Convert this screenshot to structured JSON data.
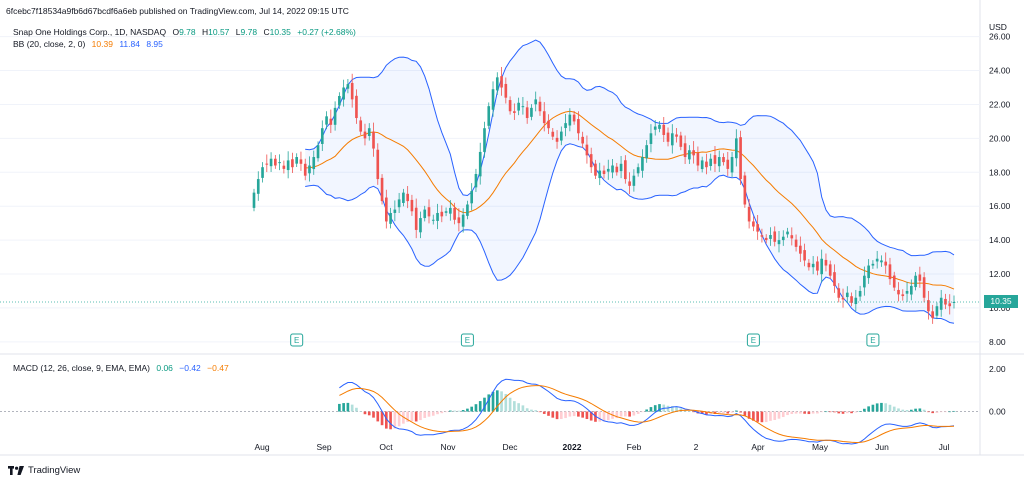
{
  "published": "6fcebc7f18534a9fb6d67bcdf6a6eb published on TradingView.com, Jul 14, 2022 09:15 UTC",
  "legend": {
    "symbol": "Snap One Holdings Corp., 1D, NASDAQ",
    "o_label": "O",
    "o_val": "9.78",
    "h_label": "H",
    "h_val": "10.57",
    "l_label": "L",
    "l_val": "9.78",
    "c_label": "C",
    "c_val": "10.35",
    "change": "+0.27 (+2.68%)",
    "bb_name": "BB (20, close, 2, 0)",
    "bb_basis": "10.39",
    "bb_upper": "11.84",
    "bb_lower": "8.95",
    "macd_name": "MACD (12, 26, close, 9, EMA, EMA)",
    "macd_hist": "0.06",
    "macd_line": "−0.42",
    "macd_signal": "−0.47"
  },
  "price_tag": "10.35",
  "branding": "TradingView",
  "colors": {
    "up": "#26a69a",
    "down": "#ef5350",
    "band": "#2962ff",
    "basis": "#f57c00",
    "macd_line": "#2962ff",
    "signal": "#f57c00",
    "hist_up_strong": "#26a69a",
    "hist_up_weak": "#b2dfdb",
    "hist_down_strong": "#ef5350",
    "hist_down_weak": "#ffcdd2"
  },
  "chart_data": {
    "type": "candlestick",
    "title": "Snap One Holdings Corp., 1D, NASDAQ",
    "currency": "USD",
    "price_ylim": [
      7.4,
      27.1
    ],
    "price_ticks": [
      "26.00",
      "24.00",
      "22.00",
      "20.00",
      "18.00",
      "16.00",
      "14.00",
      "12.00",
      "10.00",
      "8.00"
    ],
    "macd_ylim": [
      -1.8,
      2.6
    ],
    "macd_ticks": [
      "2.00",
      "0.00"
    ],
    "x_labels": [
      "Aug",
      "Sep",
      "Oct",
      "Nov",
      "Dec",
      "2022",
      "Feb",
      "2",
      "Apr",
      "May",
      "Jun",
      "Jul"
    ],
    "earnings_markers": [
      10,
      50,
      117,
      145
    ],
    "earnings_label": "E",
    "closes": [
      16.8,
      17.6,
      18.3,
      18.5,
      18.8,
      18.4,
      18.6,
      18.2,
      18.7,
      18.3,
      18.9,
      18.5,
      17.8,
      18.4,
      18.9,
      19.6,
      20.6,
      21.3,
      20.8,
      21.8,
      22.5,
      23.0,
      23.2,
      22.3,
      21.2,
      20.4,
      20.0,
      20.6,
      19.4,
      17.6,
      16.3,
      15.1,
      15.6,
      15.8,
      16.4,
      16.8,
      16.3,
      15.7,
      14.6,
      15.3,
      15.8,
      15.4,
      15.2,
      15.6,
      15.4,
      15.7,
      15.9,
      15.2,
      15.0,
      15.5,
      16.1,
      16.9,
      17.9,
      19.2,
      20.6,
      21.9,
      22.9,
      23.6,
      23.0,
      22.4,
      21.6,
      21.5,
      22.1,
      21.9,
      21.2,
      21.8,
      22.3,
      21.6,
      20.9,
      20.6,
      20.1,
      19.8,
      20.4,
      20.9,
      21.4,
      21.0,
      20.3,
      19.7,
      19.0,
      18.3,
      17.8,
      18.1,
      17.9,
      18.2,
      18.4,
      18.0,
      18.5,
      17.6,
      17.2,
      17.8,
      18.3,
      18.9,
      19.6,
      20.3,
      20.7,
      20.8,
      20.2,
      19.8,
      20.3,
      20.1,
      19.5,
      18.9,
      19.3,
      19.0,
      18.4,
      18.7,
      18.3,
      18.8,
      18.5,
      18.9,
      18.6,
      18.2,
      18.9,
      20.0,
      17.6,
      16.1,
      15.1,
      14.8,
      14.5,
      14.2,
      14.0,
      14.3,
      13.9,
      14.0,
      14.2,
      14.5,
      14.1,
      13.6,
      13.2,
      12.8,
      12.4,
      12.6,
      12.2,
      12.9,
      12.5,
      11.9,
      11.3,
      10.6,
      10.5,
      10.9,
      10.3,
      10.6,
      11.0,
      11.9,
      12.5,
      12.6,
      12.9,
      12.8,
      12.5,
      11.7,
      11.2,
      10.8,
      10.7,
      11.0,
      11.3,
      11.9,
      11.6,
      10.6,
      9.8,
      9.4,
      10.1,
      10.6,
      10.2,
      10.1,
      10.35
    ]
  }
}
